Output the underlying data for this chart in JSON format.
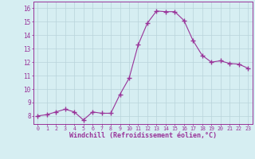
{
  "x": [
    0,
    1,
    2,
    3,
    4,
    5,
    6,
    7,
    8,
    9,
    10,
    11,
    12,
    13,
    14,
    15,
    16,
    17,
    18,
    19,
    20,
    21,
    22,
    23
  ],
  "y": [
    8.0,
    8.1,
    8.3,
    8.5,
    8.3,
    7.7,
    8.3,
    8.2,
    8.2,
    9.6,
    10.8,
    13.3,
    14.9,
    15.8,
    15.75,
    15.75,
    15.1,
    13.6,
    12.5,
    12.0,
    12.1,
    11.9,
    11.85,
    11.55
  ],
  "line_color": "#993399",
  "marker": "+",
  "marker_size": 4,
  "bg_color": "#d6eef2",
  "grid_color": "#b8d4db",
  "tick_color": "#993399",
  "label_color": "#993399",
  "xlabel": "Windchill (Refroidissement éolien,°C)",
  "xlabel_fontsize": 6.0,
  "ytick_labels": [
    "8",
    "9",
    "10",
    "11",
    "12",
    "13",
    "14",
    "15",
    "16"
  ],
  "ytick_vals": [
    8,
    9,
    10,
    11,
    12,
    13,
    14,
    15,
    16
  ],
  "xtick_vals": [
    0,
    1,
    2,
    3,
    4,
    5,
    6,
    7,
    8,
    9,
    10,
    11,
    12,
    13,
    14,
    15,
    16,
    17,
    18,
    19,
    20,
    21,
    22,
    23
  ],
  "ylim": [
    7.4,
    16.5
  ],
  "xlim": [
    -0.5,
    23.5
  ]
}
